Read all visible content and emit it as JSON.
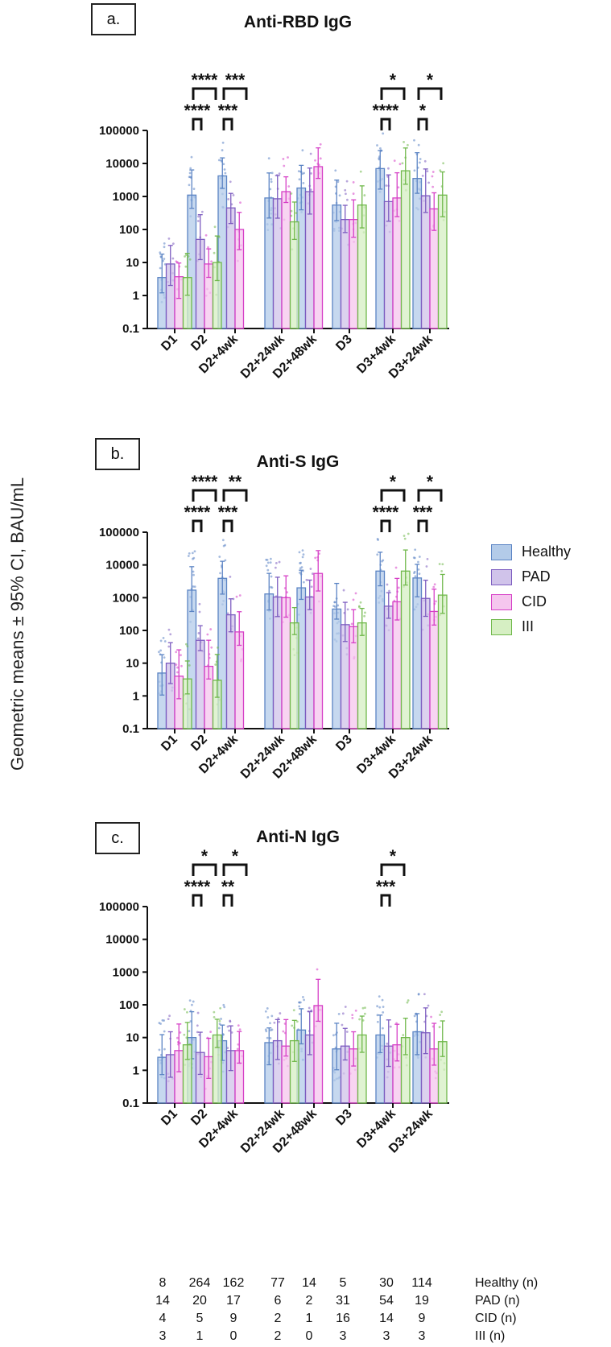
{
  "y_axis_label": "Geometric means ± 95% CI, BAU/mL",
  "legend": [
    {
      "label": "Healthy",
      "fill": "#b3cbe9",
      "stroke": "#5b84c4"
    },
    {
      "label": "PAD",
      "fill": "#d0c3ea",
      "stroke": "#7d5cc0"
    },
    {
      "label": "CID",
      "fill": "#f5c6ee",
      "stroke": "#d63fc6"
    },
    {
      "label": "III",
      "fill": "#d6efc3",
      "stroke": "#6fb84a"
    }
  ],
  "ticks": [
    "0.1",
    "1",
    "10",
    "100",
    "1000",
    "10000",
    "100000"
  ],
  "chart_data": [
    {
      "type": "bar",
      "panel": "a.",
      "title": "Anti-RBD IgG",
      "scale": "log",
      "ylim": [
        0.1,
        100000
      ],
      "categories": [
        "D1",
        "D2",
        "D2+4wk",
        "D2+24wk",
        "D2+48wk",
        "D3",
        "D3+4wk",
        "D3+24wk"
      ],
      "series": [
        {
          "name": "Healthy",
          "values": [
            3.5,
            1100,
            4200,
            900,
            1800,
            550,
            7000,
            3500
          ]
        },
        {
          "name": "PAD",
          "values": [
            9,
            50,
            450,
            850,
            1400,
            200,
            700,
            1050
          ]
        },
        {
          "name": "CID",
          "values": [
            3.7,
            9,
            100,
            1400,
            8000,
            200,
            900,
            420
          ]
        },
        {
          "name": "III",
          "values": [
            3.5,
            10,
            null,
            170,
            null,
            550,
            6000,
            1100
          ]
        }
      ],
      "significance": [
        {
          "category": "D2",
          "stars": [
            "****",
            "****"
          ]
        },
        {
          "category": "D2+4wk",
          "stars": [
            "***",
            "***"
          ]
        },
        {
          "category": "D3+4wk",
          "stars": [
            "*",
            "****"
          ]
        },
        {
          "category": "D3+24wk",
          "stars": [
            "*",
            "*"
          ]
        }
      ]
    },
    {
      "type": "bar",
      "panel": "b.",
      "title": "Anti-S IgG",
      "scale": "log",
      "ylim": [
        0.1,
        100000
      ],
      "categories": [
        "D1",
        "D2",
        "D2+4wk",
        "D2+24wk",
        "D2+48wk",
        "D3",
        "D3+4wk",
        "D3+24wk"
      ],
      "series": [
        {
          "name": "Healthy",
          "values": [
            5,
            1700,
            3900,
            1300,
            2000,
            450,
            6500,
            4000
          ]
        },
        {
          "name": "PAD",
          "values": [
            10,
            50,
            300,
            1050,
            1050,
            150,
            550,
            950
          ]
        },
        {
          "name": "CID",
          "values": [
            4,
            8,
            90,
            1000,
            5500,
            130,
            750,
            380
          ]
        },
        {
          "name": "III",
          "values": [
            3.3,
            3,
            null,
            170,
            null,
            170,
            6500,
            1200
          ]
        }
      ],
      "significance": [
        {
          "category": "D2",
          "stars": [
            "****",
            "****"
          ]
        },
        {
          "category": "D2+4wk",
          "stars": [
            "**",
            "***"
          ]
        },
        {
          "category": "D3+4wk",
          "stars": [
            "*",
            "****"
          ]
        },
        {
          "category": "D3+24wk",
          "stars": [
            "*",
            "***"
          ]
        }
      ]
    },
    {
      "type": "bar",
      "panel": "c.",
      "title": "Anti-N IgG",
      "scale": "log",
      "ylim": [
        0.1,
        100000
      ],
      "categories": [
        "D1",
        "D2",
        "D2+4wk",
        "D2+24wk",
        "D2+48wk",
        "D3",
        "D3+4wk",
        "D3+24wk"
      ],
      "series": [
        {
          "name": "Healthy",
          "values": [
            2.5,
            10,
            8,
            7,
            17,
            4.5,
            12,
            15
          ]
        },
        {
          "name": "PAD",
          "values": [
            3,
            3.5,
            4,
            8,
            12,
            5.5,
            5.5,
            14
          ]
        },
        {
          "name": "CID",
          "values": [
            4,
            2.6,
            4,
            5.5,
            95,
            4.5,
            6,
            4.5
          ]
        },
        {
          "name": "III",
          "values": [
            6,
            12,
            null,
            8,
            null,
            12,
            10,
            7.5
          ]
        }
      ],
      "significance": [
        {
          "category": "D2",
          "stars": [
            "*",
            "****"
          ]
        },
        {
          "category": "D2+4wk",
          "stars": [
            "*",
            "**"
          ]
        },
        {
          "category": "D3+4wk",
          "stars": [
            "*",
            "***"
          ]
        }
      ]
    }
  ],
  "n_table": {
    "rows": [
      {
        "label": "Healthy (n)",
        "values": [
          "8",
          "264",
          "162",
          "77",
          "14",
          "5",
          "30",
          "114"
        ]
      },
      {
        "label": "PAD (n)",
        "values": [
          "14",
          "20",
          "17",
          "6",
          "2",
          "31",
          "54",
          "19"
        ]
      },
      {
        "label": "CID (n)",
        "values": [
          "4",
          "5",
          "9",
          "2",
          "1",
          "16",
          "14",
          "9"
        ]
      },
      {
        "label": "III (n)",
        "values": [
          "3",
          "1",
          "0",
          "2",
          "0",
          "3",
          "3",
          "3"
        ]
      }
    ]
  }
}
